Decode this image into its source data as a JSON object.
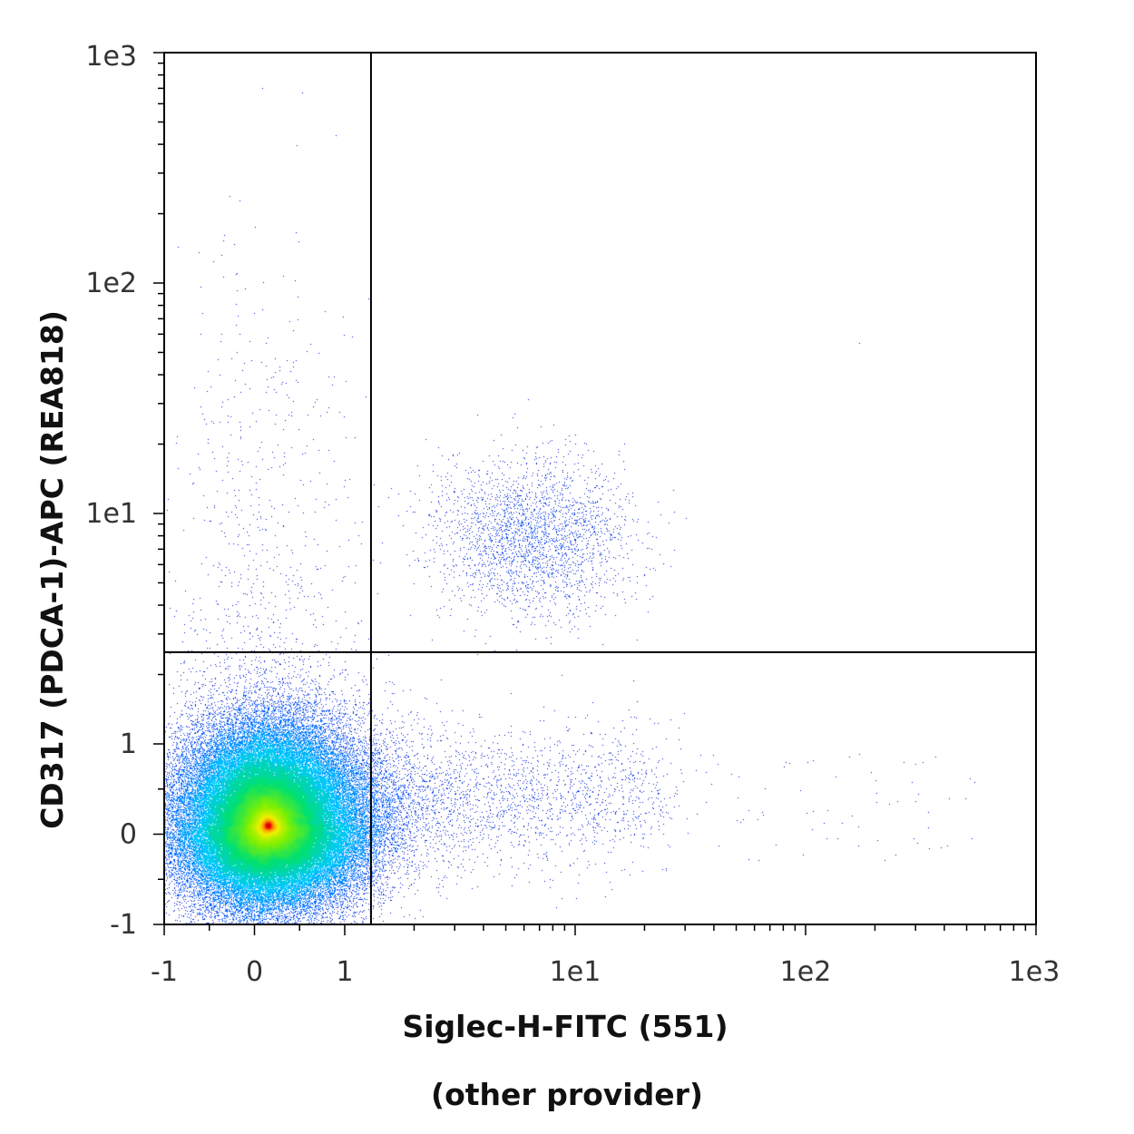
{
  "chart_data": {
    "type": "scatter",
    "subtype": "flow-cytometry density dot plot",
    "xlabel": "Siglec-H-FITC (551)",
    "xlabel_line2": "(other provider)",
    "ylabel": "CD317 (PDCA-1)-APC (REA818)",
    "x_scale": "biexponential (linear near 0, log above 1)",
    "y_scale": "biexponential (linear near 0, log above 1)",
    "xlim": [
      -1,
      1000
    ],
    "ylim": [
      -1,
      1000
    ],
    "x_ticks": [
      "-1",
      "0",
      "1",
      "1e1",
      "1e2",
      "1e3"
    ],
    "y_ticks": [
      "-1",
      "0",
      "1",
      "1e1",
      "1e2",
      "1e3"
    ],
    "quadrant_gate": {
      "x": 1.3,
      "y": 2.5
    },
    "grid": false,
    "legend": "none",
    "density_colormap": [
      "#0000c8",
      "#0060ff",
      "#00c8ff",
      "#00e070",
      "#80f000",
      "#f0f000",
      "#ff8000",
      "#e00000"
    ],
    "populations": [
      {
        "label": "main population (lower-left, double negative)",
        "center": [
          0.15,
          0.1
        ],
        "relative_size": "very large"
      },
      {
        "label": "pDC cluster (upper-right, double positive)",
        "center": [
          7,
          8
        ],
        "relative_size": "small"
      },
      {
        "label": "Siglec-H+ tail (lower-right)",
        "center": [
          5,
          0.3
        ],
        "relative_size": "sparse"
      }
    ]
  }
}
